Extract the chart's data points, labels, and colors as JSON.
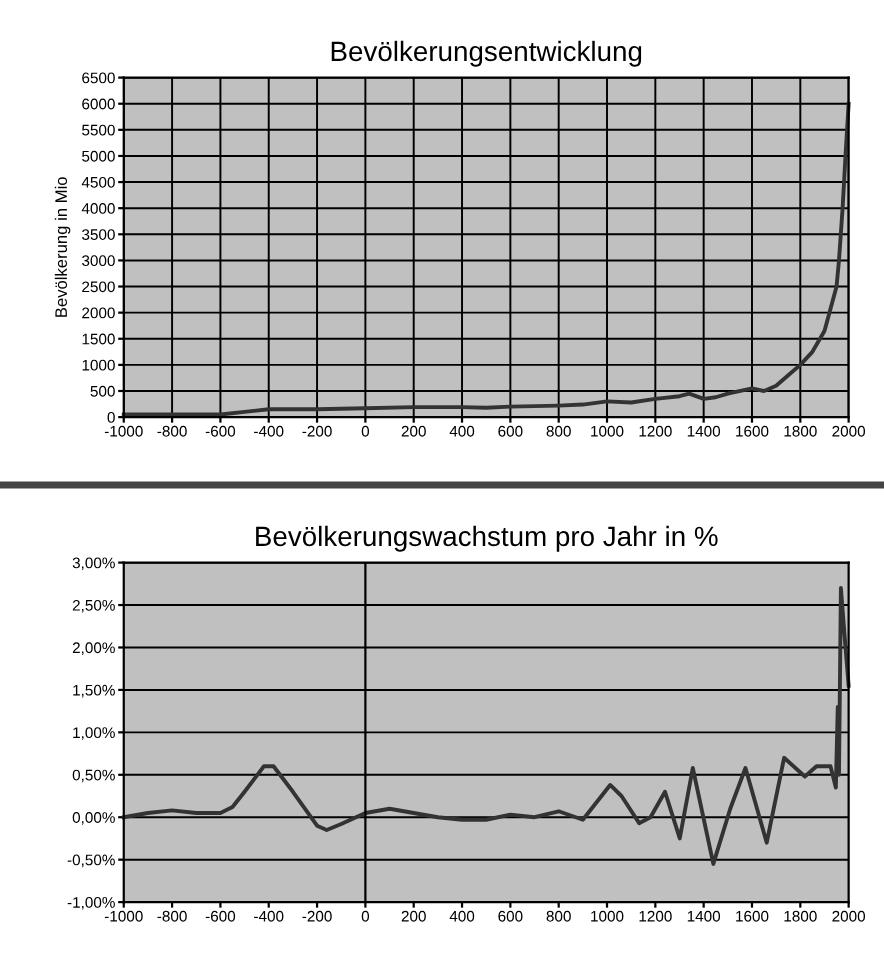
{
  "chart_data": [
    {
      "type": "line",
      "title": "Bevölkerungsentwicklung",
      "ylabel": "Bevölkerung in Mio",
      "grid": true,
      "legend": false,
      "series": [
        {
          "color": "#333333",
          "x": [
            -1000,
            -800,
            -600,
            -500,
            -400,
            -300,
            -200,
            -100,
            0,
            200,
            400,
            500,
            600,
            800,
            900,
            1000,
            1100,
            1200,
            1300,
            1340,
            1400,
            1450,
            1500,
            1600,
            1650,
            1700,
            1750,
            1800,
            1850,
            1900,
            1950,
            1960,
            1975,
            1987,
            2000
          ],
          "values": [
            50,
            50,
            50,
            100,
            150,
            150,
            150,
            160,
            170,
            190,
            190,
            180,
            200,
            220,
            240,
            300,
            280,
            350,
            400,
            450,
            350,
            380,
            450,
            550,
            500,
            600,
            800,
            1000,
            1250,
            1650,
            2500,
            3000,
            4000,
            5000,
            6000
          ]
        }
      ],
      "xlim": [
        -1000,
        2000
      ],
      "xticks": [
        -1000,
        -800,
        -600,
        -400,
        -200,
        0,
        200,
        400,
        600,
        800,
        1000,
        1200,
        1400,
        1600,
        1800,
        2000
      ],
      "ylim": [
        0,
        6500
      ],
      "yticks": [
        0,
        500,
        1000,
        1500,
        2000,
        2500,
        3000,
        3500,
        4000,
        4500,
        5000,
        5500,
        6000,
        6500
      ]
    },
    {
      "type": "line",
      "title": "Bevölkerungswachstum pro Jahr in %",
      "grid": "y",
      "legend": false,
      "series": [
        {
          "color": "#333333",
          "x": [
            -1000,
            -900,
            -800,
            -700,
            -600,
            -550,
            -500,
            -420,
            -380,
            -300,
            -200,
            -160,
            -100,
            0,
            100,
            200,
            300,
            400,
            500,
            600,
            700,
            800,
            900,
            1013,
            1060,
            1133,
            1180,
            1240,
            1301,
            1355,
            1440,
            1510,
            1573,
            1661,
            1733,
            1819,
            1867,
            1925,
            1947,
            1955,
            1960,
            1968,
            1987,
            2000
          ],
          "values": [
            0,
            0.05,
            0.08,
            0.05,
            0.05,
            0.12,
            0.3,
            0.6,
            0.6,
            0.3,
            -0.1,
            -0.15,
            -0.08,
            0.05,
            0.1,
            0.05,
            0,
            -0.03,
            -0.03,
            0.03,
            0,
            0.07,
            -0.03,
            0.38,
            0.25,
            -0.07,
            0.0,
            0.3,
            -0.25,
            0.58,
            -0.55,
            0.1,
            0.58,
            -0.3,
            0.7,
            0.48,
            0.6,
            0.6,
            0.35,
            1.3,
            0.5,
            2.7,
            2.0,
            1.55
          ]
        }
      ],
      "ref_lines": [
        {
          "axis": "x",
          "value": 0,
          "label": null,
          "color": "#000000"
        }
      ],
      "xlim": [
        -1000,
        2000
      ],
      "xticks": [
        -1000,
        -800,
        -600,
        -400,
        -200,
        0,
        200,
        400,
        600,
        800,
        1000,
        1200,
        1400,
        1600,
        1800,
        2000
      ],
      "ylim": [
        -1,
        3
      ],
      "yticks": [
        {
          "value": -1,
          "label": "-1,00%"
        },
        {
          "value": -0.5,
          "label": "-0,50%"
        },
        {
          "value": 0,
          "label": "0,00%"
        },
        {
          "value": 0.5,
          "label": "0,50%"
        },
        {
          "value": 1,
          "label": "1,00%"
        },
        {
          "value": 1.5,
          "label": "1,50%"
        },
        {
          "value": 2,
          "label": "2,00%"
        },
        {
          "value": 2.5,
          "label": "2,50%"
        },
        {
          "value": 3,
          "label": "3,00%"
        }
      ]
    }
  ]
}
